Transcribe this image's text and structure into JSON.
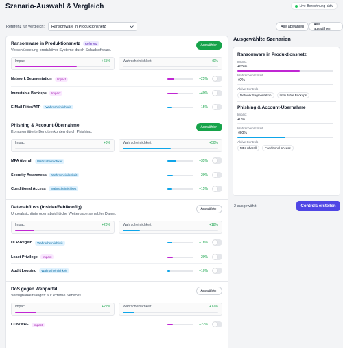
{
  "header": {
    "title": "Szenario-Auswahl & Vergleich",
    "live_label": "Live-Berechnung aktiv",
    "reference_label": "Referenz für Vergleich:",
    "reference_value": "Ransomware in Produktionsnetz",
    "deselect_all": "Alle abwählen",
    "select_all": "Alle auswählen"
  },
  "colors": {
    "impact": "#c026d3",
    "probability": "#0ea5e9",
    "positive": "#16a34a",
    "primary": "#4f46e5"
  },
  "labels": {
    "impact": "Impact",
    "probability": "Wahrscheinlichkeit",
    "select": "Auswählen",
    "active_controls": "Aktive Controls"
  },
  "scenarios": [
    {
      "title": "Ransomware in Produktionsnetz",
      "badge": "Referenz",
      "desc": "Verschlüsselung produktiver Systeme durch Schadsoftware.",
      "selected": true,
      "impact": "+65%",
      "impact_level": 0.65,
      "probability": "+0%",
      "probability_level": 0.0,
      "controls": [
        {
          "name": "Network Segmentation",
          "tag": "Impact",
          "value": "+25%",
          "level": 0.25
        },
        {
          "name": "Immutable Backups",
          "tag": "Impact",
          "value": "+40%",
          "level": 0.4
        },
        {
          "name": "E-Mail Filter/ATP",
          "tag": "Wahrscheinlichkeit",
          "value": "+15%",
          "level": 0.15
        }
      ]
    },
    {
      "title": "Phishing & Account-Übernahme",
      "desc": "Kompromittierte Benutzerkonten durch Phishing.",
      "selected": true,
      "impact": "+0%",
      "impact_level": 0.0,
      "probability": "+50%",
      "probability_level": 0.5,
      "controls": [
        {
          "name": "MFA überall",
          "tag": "Wahrscheinlichkeit",
          "value": "+35%",
          "level": 0.35
        },
        {
          "name": "Security Awareness",
          "tag": "Wahrscheinlichkeit",
          "value": "+20%",
          "level": 0.2
        },
        {
          "name": "Conditional Access",
          "tag": "Wahrscheinlichkeit",
          "value": "+15%",
          "level": 0.15
        }
      ]
    },
    {
      "title": "Datenabfluss (Insider/Fehlkonfig)",
      "desc": "Unbeabsichtigte oder absichtliche Weitergabe sensibler Daten.",
      "selected": false,
      "impact": "+20%",
      "impact_level": 0.2,
      "probability": "+18%",
      "probability_level": 0.18,
      "controls": [
        {
          "name": "DLP-Regeln",
          "tag": "Wahrscheinlichkeit",
          "value": "+18%",
          "level": 0.18
        },
        {
          "name": "Least Privilege",
          "tag": "Impact",
          "value": "+20%",
          "level": 0.2
        },
        {
          "name": "Audit Logging",
          "tag": "Wahrscheinlichkeit",
          "value": "+10%",
          "level": 0.1
        }
      ]
    },
    {
      "title": "DoS gegen Webportal",
      "desc": "Verfügbarkeitsangriff auf externe Services.",
      "selected": false,
      "impact": "+22%",
      "impact_level": 0.22,
      "probability": "+12%",
      "probability_level": 0.12,
      "controls": [
        {
          "name": "CDN/WAF",
          "tag": "Impact",
          "value": "+22%",
          "level": 0.22
        }
      ]
    }
  ],
  "sidebar": {
    "title": "Ausgewählte Szenarien",
    "items": [
      {
        "name": "Ransomware in Produktionsnetz",
        "impact": "+65%",
        "impact_level": 0.65,
        "probability": "+0%",
        "probability_level": 0.0,
        "controls": [
          "Network Segmentation",
          "Immutable Backups"
        ]
      },
      {
        "name": "Phishing & Account-Übernahme",
        "impact": "+0%",
        "impact_level": 0.0,
        "probability": "+50%",
        "probability_level": 0.5,
        "controls": [
          "MFA überall",
          "Conditional Access"
        ]
      }
    ],
    "count": "2 ausgewählt",
    "create_button": "Controls erstellen"
  }
}
